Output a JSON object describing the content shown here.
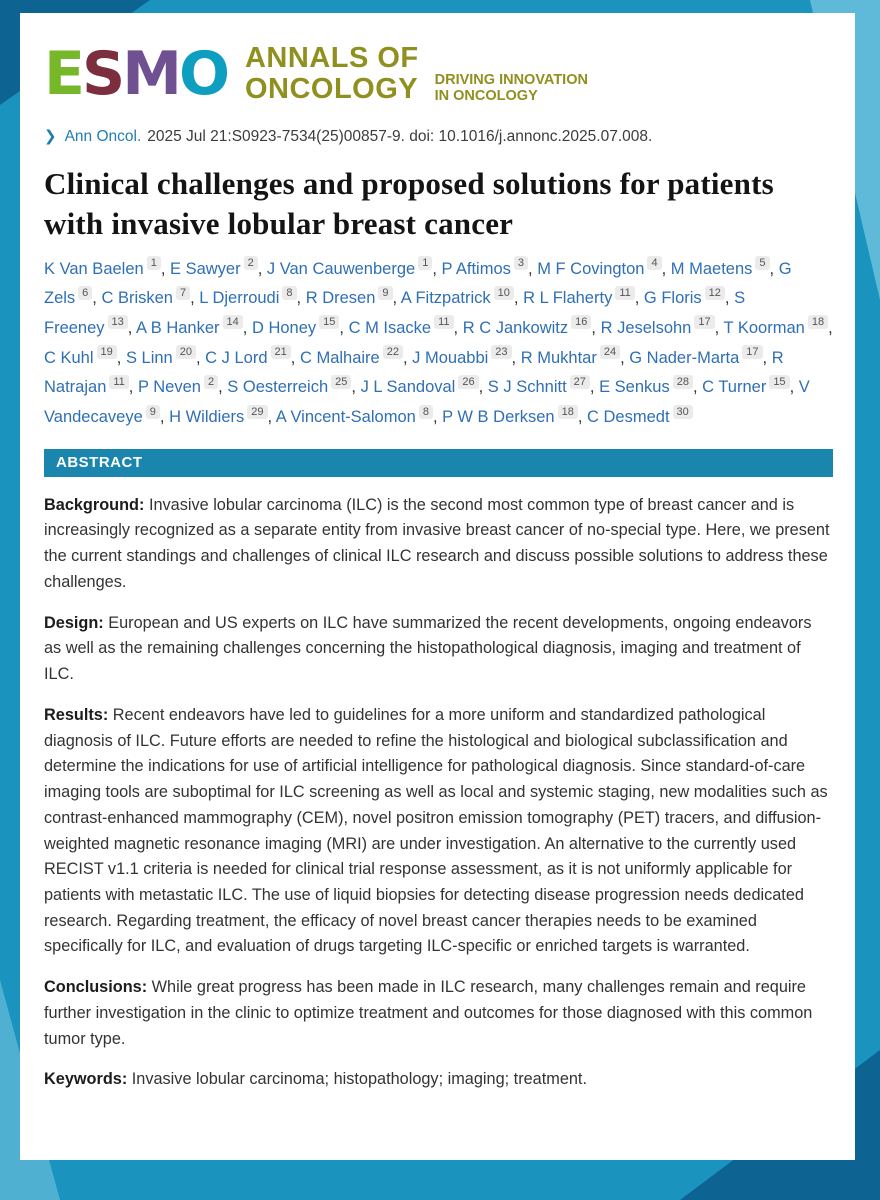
{
  "colors": {
    "frame": "#1a93bf",
    "frame_dark": "#0d6493",
    "frame_light": "#5fb9d8",
    "abstract_bar": "#1a86ae",
    "author_link": "#2f6fb5",
    "citation_link": "#1f7fb0",
    "journal_olive": "#8f901f"
  },
  "header": {
    "logo_letters": [
      {
        "char": "E",
        "color": "#76b82a"
      },
      {
        "char": "S",
        "color": "#7c2d3e"
      },
      {
        "char": "M",
        "color": "#6f5091"
      },
      {
        "char": "O",
        "color": "#0e9fc0"
      }
    ],
    "journal_line1": "ANNALS OF",
    "journal_line2": "ONCOLOGY",
    "tagline_line1": "DRIVING INNOVATION",
    "tagline_line2": "IN ONCOLOGY"
  },
  "citation": {
    "chevron": "❯",
    "journal": "Ann Oncol.",
    "rest": "2025 Jul 21:S0923-7534(25)00857-9. doi: 10.1016/j.annonc.2025.07.008."
  },
  "title": "Clinical challenges and proposed solutions for patients with invasive lobular breast cancer",
  "authors": [
    {
      "name": "K Van Baelen",
      "sup": "1"
    },
    {
      "name": "E Sawyer",
      "sup": "2"
    },
    {
      "name": "J Van Cauwenberge",
      "sup": "1"
    },
    {
      "name": "P Aftimos",
      "sup": "3"
    },
    {
      "name": "M F Covington",
      "sup": "4"
    },
    {
      "name": "M Maetens",
      "sup": "5"
    },
    {
      "name": "G Zels",
      "sup": "6"
    },
    {
      "name": "C Brisken",
      "sup": "7"
    },
    {
      "name": "L Djerroudi",
      "sup": "8"
    },
    {
      "name": "R Dresen",
      "sup": "9"
    },
    {
      "name": "A Fitzpatrick",
      "sup": "10"
    },
    {
      "name": "R L Flaherty",
      "sup": "11"
    },
    {
      "name": "G Floris",
      "sup": "12"
    },
    {
      "name": "S Freeney",
      "sup": "13"
    },
    {
      "name": "A B Hanker",
      "sup": "14"
    },
    {
      "name": "D Honey",
      "sup": "15"
    },
    {
      "name": "C M Isacke",
      "sup": "11"
    },
    {
      "name": "R C Jankowitz",
      "sup": "16"
    },
    {
      "name": "R Jeselsohn",
      "sup": "17"
    },
    {
      "name": "T Koorman",
      "sup": "18"
    },
    {
      "name": "C Kuhl",
      "sup": "19"
    },
    {
      "name": "S Linn",
      "sup": "20"
    },
    {
      "name": "C J Lord",
      "sup": "21"
    },
    {
      "name": "C Malhaire",
      "sup": "22"
    },
    {
      "name": "J Mouabbi",
      "sup": "23"
    },
    {
      "name": "R Mukhtar",
      "sup": "24"
    },
    {
      "name": "G Nader-Marta",
      "sup": "17"
    },
    {
      "name": "R Natrajan",
      "sup": "11"
    },
    {
      "name": "P Neven",
      "sup": "2"
    },
    {
      "name": "S Oesterreich",
      "sup": "25"
    },
    {
      "name": "J L Sandoval",
      "sup": "26"
    },
    {
      "name": "S J Schnitt",
      "sup": "27"
    },
    {
      "name": "E Senkus",
      "sup": "28"
    },
    {
      "name": "C Turner",
      "sup": "15"
    },
    {
      "name": "V Vandecaveye",
      "sup": "9"
    },
    {
      "name": "H Wildiers",
      "sup": "29"
    },
    {
      "name": "A Vincent-Salomon",
      "sup": "8"
    },
    {
      "name": "P W B Derksen",
      "sup": "18"
    },
    {
      "name": "C Desmedt",
      "sup": "30"
    }
  ],
  "abstract": {
    "header": "ABSTRACT",
    "sections": [
      {
        "label": "Background:",
        "text": "Invasive lobular carcinoma (ILC) is the second most common type of breast cancer and is increasingly recognized as a separate entity from invasive breast cancer of no-special type. Here, we present the current standings and challenges of clinical ILC research and discuss possible solutions to address these challenges."
      },
      {
        "label": "Design:",
        "text": "European and US experts on ILC have summarized the recent developments, ongoing endeavors as well as the remaining challenges concerning the histopathological diagnosis, imaging and treatment of ILC."
      },
      {
        "label": "Results:",
        "text": "Recent endeavors have led to guidelines for a more uniform and standardized pathological diagnosis of ILC. Future efforts are needed to refine the histological and biological subclassification and determine the indications for use of artificial intelligence for pathological diagnosis. Since standard-of-care imaging tools are suboptimal for ILC screening as well as local and systemic staging, new modalities such as contrast-enhanced mammography (CEM), novel positron emission tomography (PET) tracers, and diffusion-weighted magnetic resonance imaging (MRI) are under investigation. An alternative to the currently used RECIST v1.1 criteria is needed for clinical trial response assessment, as it is not uniformly applicable for patients with metastatic ILC. The use of liquid biopsies for detecting disease progression needs dedicated research. Regarding treatment, the efficacy of novel breast cancer therapies needs to be examined specifically for ILC, and evaluation of drugs targeting ILC-specific or enriched targets is warranted."
      },
      {
        "label": "Conclusions:",
        "text": "While great progress has been made in ILC research, many challenges remain and require further investigation in the clinic to optimize treatment and outcomes for those diagnosed with this common tumor type."
      },
      {
        "label": "Keywords:",
        "text": "Invasive lobular carcinoma; histopathology; imaging; treatment."
      }
    ]
  }
}
